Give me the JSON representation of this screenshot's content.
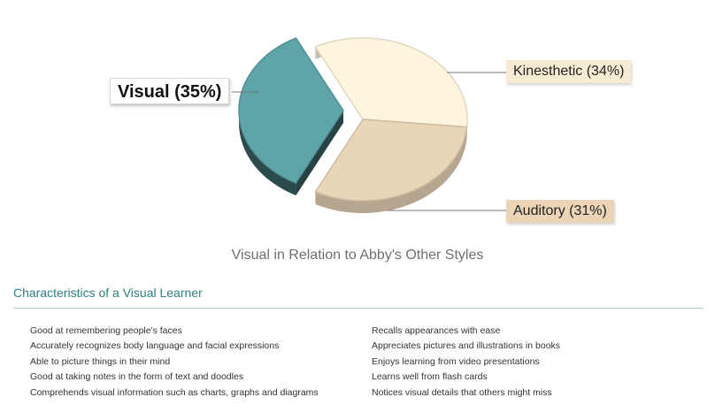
{
  "chart_data": {
    "type": "pie",
    "title": "Visual in Relation to Abby's Other Styles",
    "slices": [
      {
        "label": "Visual (35%)",
        "value": 35,
        "color": "#5ea4a8",
        "exploded": true
      },
      {
        "label": "Kinesthetic (34%)",
        "value": 34,
        "color": "#fdf5dd"
      },
      {
        "label": "Auditory (31%)",
        "value": 31,
        "color": "#e9d5b8"
      }
    ]
  },
  "characteristics": {
    "title": "Characteristics of a Visual Learner",
    "left": [
      "Good at remembering people's faces",
      "Accurately recognizes body language and facial expressions",
      "Able to picture things in their mind",
      "Good at taking notes in the form of text and doodles",
      "Comprehends visual information such as charts, graphs and diagrams"
    ],
    "right": [
      "Recalls appearances with ease",
      "Appreciates pictures and illustrations in books",
      "Enjoys learning from video presentations",
      "Learns well from flash cards",
      "Notices visual details that others might miss"
    ]
  }
}
